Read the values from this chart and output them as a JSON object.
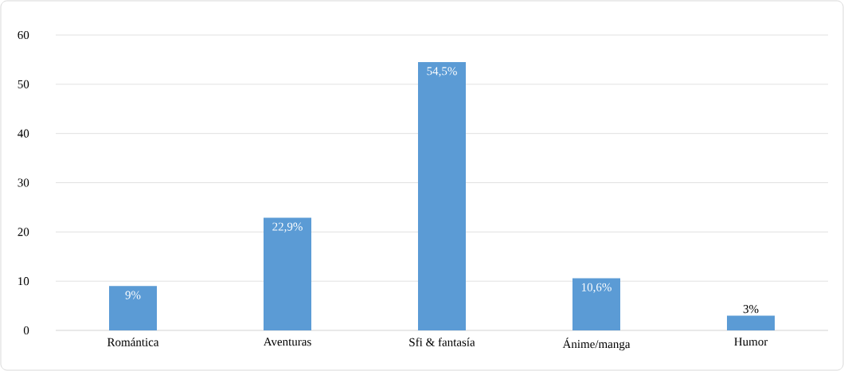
{
  "chart_data": {
    "type": "bar",
    "categories": [
      "Romántica",
      "Aventuras",
      "Sfi & fantasía",
      "Ánime/manga",
      "Humor"
    ],
    "values": [
      9,
      22.9,
      54.5,
      10.6,
      3
    ],
    "value_labels": [
      "9%",
      "22,9%",
      "54,5%",
      "10,6%",
      "3%"
    ],
    "color": "#5b9bd5",
    "ylim": [
      0,
      60
    ],
    "yticks": [
      0,
      10,
      20,
      30,
      40,
      50,
      60
    ],
    "grid": "y"
  }
}
